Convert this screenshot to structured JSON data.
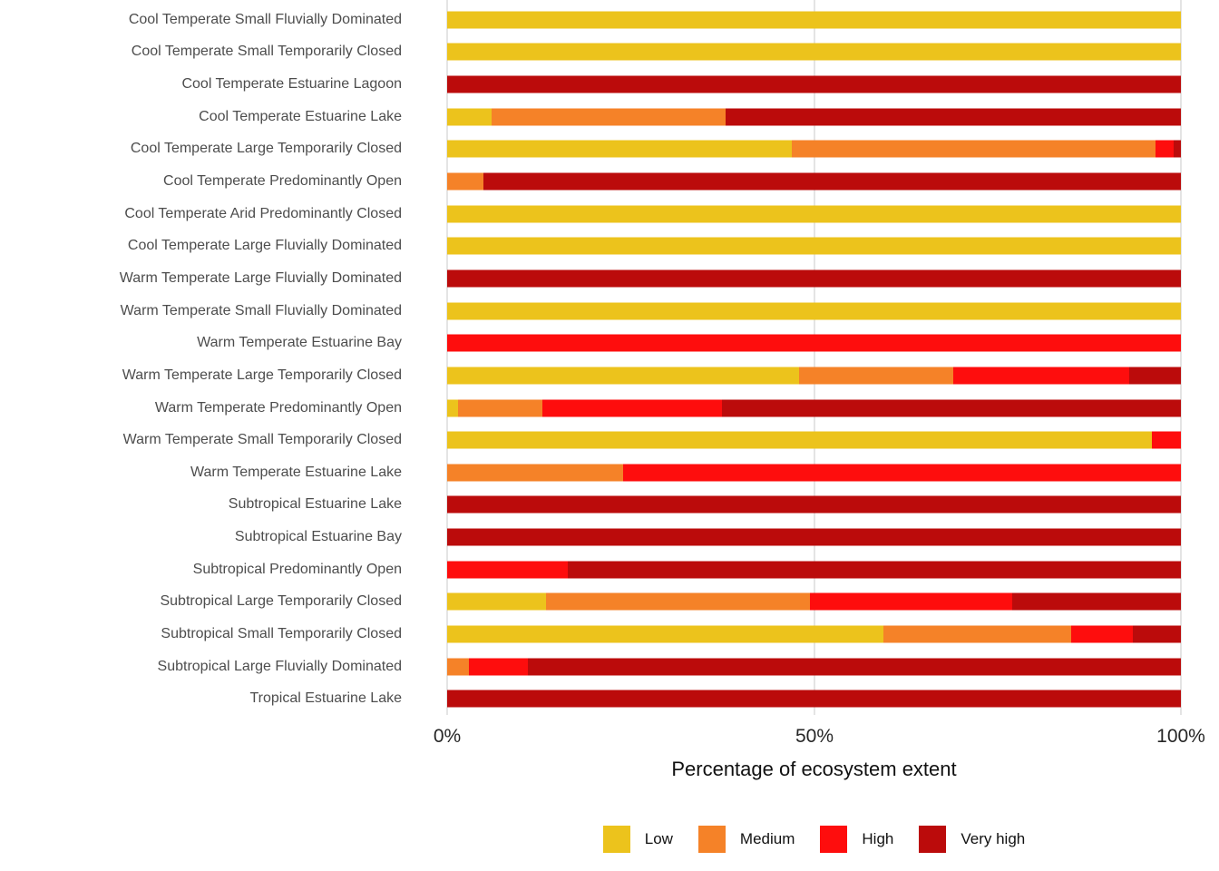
{
  "chart_data": {
    "type": "bar",
    "orientation": "horizontal",
    "stacked": true,
    "stack_total": 100,
    "title": "",
    "xlabel": "Percentage of ecosystem extent",
    "ylabel": "",
    "xlim": [
      0,
      100
    ],
    "x_ticks": [
      "0%",
      "50%",
      "100%"
    ],
    "x_tick_values": [
      0,
      50,
      100
    ],
    "grid": "vertical-major-only",
    "legend_position": "bottom",
    "categories": [
      "Cool Temperate Small Fluvially Dominated",
      "Cool Temperate Small Temporarily Closed",
      "Cool Temperate Estuarine Lagoon",
      "Cool Temperate Estuarine Lake",
      "Cool Temperate Large Temporarily Closed",
      "Cool Temperate Predominantly Open",
      "Cool Temperate Arid Predominantly Closed",
      "Cool Temperate Large Fluvially Dominated",
      "Warm Temperate Large Fluvially Dominated",
      "Warm Temperate Small Fluvially Dominated",
      "Warm Temperate Estuarine Bay",
      "Warm Temperate Large Temporarily Closed",
      "Warm Temperate Predominantly Open",
      "Warm Temperate Small Temporarily Closed",
      "Warm Temperate Estuarine Lake",
      "Subtropical Estuarine Lake",
      "Subtropical Estuarine Bay",
      "Subtropical Predominantly Open",
      "Subtropical Large Temporarily Closed",
      "Subtropical Small Temporarily Closed",
      "Subtropical Large Fluvially Dominated",
      "Tropical Estuarine Lake"
    ],
    "series": [
      {
        "name": "Low",
        "color": "#ECC31C",
        "values": [
          100,
          100,
          0,
          6,
          47,
          0,
          100,
          100,
          0,
          100,
          0,
          48,
          1.5,
          96,
          0,
          0,
          0,
          0,
          13.5,
          59.5,
          0,
          0
        ]
      },
      {
        "name": "Medium",
        "color": "#F58228",
        "values": [
          0,
          0,
          0,
          32,
          49.5,
          5,
          0,
          0,
          0,
          0,
          0,
          21,
          11.5,
          0,
          24,
          0,
          0,
          0,
          36,
          25.5,
          3,
          0
        ]
      },
      {
        "name": "High",
        "color": "#FE0D0D",
        "values": [
          0,
          0,
          0,
          0,
          2.5,
          0,
          0,
          0,
          0,
          0,
          100,
          24,
          24.5,
          4,
          76,
          0,
          0,
          16.5,
          27.5,
          8.5,
          8,
          0
        ]
      },
      {
        "name": "Very high",
        "color": "#BB0B0B",
        "values": [
          0,
          0,
          100,
          62,
          1,
          95,
          0,
          0,
          100,
          0,
          0,
          7,
          62.5,
          0,
          0,
          100,
          100,
          83.5,
          23,
          6.5,
          89,
          100
        ]
      }
    ]
  },
  "legend": {
    "items": [
      {
        "label": "Low",
        "color": "#ECC31C"
      },
      {
        "label": "Medium",
        "color": "#F58228"
      },
      {
        "label": "High",
        "color": "#FE0D0D"
      },
      {
        "label": "Very high",
        "color": "#BB0B0B"
      }
    ]
  },
  "colors": {
    "background": "#ffffff",
    "gridline": "#e4e4e4",
    "category_label": "#4d4d4d",
    "axis_text": "#262626"
  }
}
